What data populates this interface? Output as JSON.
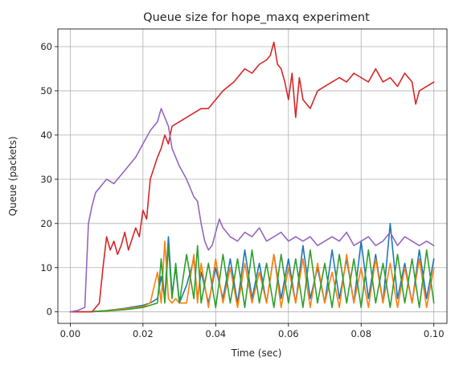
{
  "chart_data": {
    "type": "line",
    "title": "Queue size for hope_maxq experiment",
    "xlabel": "Time (sec)",
    "ylabel": "Queue (packets)",
    "xlim": [
      -0.0034,
      0.1036
    ],
    "ylim": [
      -2.6,
      64.0
    ],
    "x_ticks": [
      0.0,
      0.02,
      0.04,
      0.06,
      0.08,
      0.1
    ],
    "x_tick_labels": [
      "0.00",
      "0.02",
      "0.04",
      "0.06",
      "0.08",
      "0.10"
    ],
    "y_ticks": [
      0,
      10,
      20,
      30,
      40,
      50,
      60
    ],
    "y_tick_labels": [
      "0",
      "10",
      "20",
      "30",
      "40",
      "50",
      "60"
    ],
    "grid": true,
    "legend": "none",
    "series": [
      {
        "color": "#1f77b4",
        "x": [
          0.0,
          0.005,
          0.01,
          0.015,
          0.02,
          0.022,
          0.024,
          0.025,
          0.026,
          0.027,
          0.028,
          0.029,
          0.03,
          0.032,
          0.034,
          0.035,
          0.036,
          0.038,
          0.04,
          0.042,
          0.044,
          0.046,
          0.048,
          0.05,
          0.052,
          0.054,
          0.056,
          0.058,
          0.06,
          0.062,
          0.064,
          0.066,
          0.068,
          0.07,
          0.072,
          0.074,
          0.076,
          0.078,
          0.08,
          0.082,
          0.084,
          0.086,
          0.088,
          0.09,
          0.092,
          0.094,
          0.096,
          0.098,
          0.1
        ],
        "y": [
          0,
          0,
          0.3,
          0.8,
          1.5,
          2,
          3,
          8,
          3,
          17,
          4,
          10,
          2,
          6,
          12,
          3,
          9,
          2,
          10,
          3,
          12,
          2,
          14,
          3,
          11,
          2,
          13,
          3,
          12,
          2,
          15,
          3,
          10,
          2,
          14,
          3,
          12,
          2,
          16,
          3,
          13,
          2,
          20,
          3,
          11,
          2,
          14,
          3,
          12
        ]
      },
      {
        "color": "#ff7f0e",
        "x": [
          0.0,
          0.005,
          0.01,
          0.015,
          0.02,
          0.022,
          0.024,
          0.025,
          0.026,
          0.027,
          0.028,
          0.029,
          0.03,
          0.032,
          0.034,
          0.035,
          0.036,
          0.038,
          0.04,
          0.042,
          0.044,
          0.046,
          0.048,
          0.05,
          0.052,
          0.054,
          0.056,
          0.058,
          0.06,
          0.062,
          0.064,
          0.066,
          0.068,
          0.07,
          0.072,
          0.074,
          0.076,
          0.078,
          0.08,
          0.082,
          0.084,
          0.086,
          0.088,
          0.09,
          0.092,
          0.094,
          0.096,
          0.098,
          0.1
        ],
        "y": [
          0,
          0,
          0.3,
          0.7,
          1.2,
          2,
          9,
          2,
          16,
          3,
          2,
          3,
          2,
          2,
          13,
          2,
          11,
          1,
          12,
          2,
          10,
          1,
          11,
          2,
          9,
          2,
          13,
          1,
          10,
          2,
          12,
          1,
          11,
          2,
          9,
          1,
          13,
          2,
          10,
          1,
          12,
          2,
          11,
          1,
          10,
          2,
          12,
          1,
          10
        ]
      },
      {
        "color": "#2ca02c",
        "x": [
          0.0,
          0.005,
          0.01,
          0.015,
          0.02,
          0.022,
          0.024,
          0.025,
          0.026,
          0.027,
          0.028,
          0.029,
          0.03,
          0.032,
          0.034,
          0.035,
          0.036,
          0.038,
          0.04,
          0.042,
          0.044,
          0.046,
          0.048,
          0.05,
          0.052,
          0.054,
          0.056,
          0.058,
          0.06,
          0.062,
          0.064,
          0.066,
          0.068,
          0.07,
          0.072,
          0.074,
          0.076,
          0.078,
          0.08,
          0.082,
          0.084,
          0.086,
          0.088,
          0.09,
          0.092,
          0.094,
          0.096,
          0.098,
          0.1
        ],
        "y": [
          0,
          0,
          0.2,
          0.5,
          1,
          1.5,
          2,
          12,
          2,
          15,
          3,
          11,
          2,
          13,
          3,
          15,
          2,
          11,
          1,
          13,
          2,
          12,
          1,
          14,
          2,
          11,
          1,
          13,
          2,
          12,
          1,
          14,
          2,
          11,
          1,
          13,
          2,
          12,
          1,
          14,
          2,
          11,
          1,
          13,
          2,
          12,
          1,
          14,
          2
        ]
      },
      {
        "color": "#d62728",
        "x": [
          0.0,
          0.006,
          0.008,
          0.009,
          0.01,
          0.011,
          0.012,
          0.013,
          0.014,
          0.015,
          0.016,
          0.018,
          0.019,
          0.02,
          0.021,
          0.022,
          0.024,
          0.025,
          0.026,
          0.027,
          0.028,
          0.03,
          0.032,
          0.034,
          0.036,
          0.038,
          0.04,
          0.042,
          0.045,
          0.048,
          0.05,
          0.052,
          0.054,
          0.055,
          0.056,
          0.057,
          0.058,
          0.059,
          0.06,
          0.061,
          0.062,
          0.063,
          0.064,
          0.066,
          0.068,
          0.07,
          0.072,
          0.074,
          0.076,
          0.078,
          0.08,
          0.082,
          0.084,
          0.086,
          0.088,
          0.09,
          0.092,
          0.094,
          0.095,
          0.096,
          0.098,
          0.1
        ],
        "y": [
          0,
          0,
          2,
          10,
          17,
          14,
          16,
          13,
          15,
          18,
          14,
          19,
          17,
          23,
          21,
          30,
          35,
          37,
          40,
          38,
          42,
          43,
          44,
          45,
          46,
          46,
          48,
          50,
          52,
          55,
          54,
          56,
          57,
          58,
          61,
          56,
          55,
          52,
          48,
          54,
          44,
          53,
          48,
          46,
          50,
          51,
          52,
          53,
          52,
          54,
          53,
          52,
          55,
          52,
          53,
          51,
          54,
          52,
          47,
          50,
          51,
          52
        ]
      },
      {
        "color": "#9467bd",
        "x": [
          0.0,
          0.002,
          0.004,
          0.005,
          0.006,
          0.007,
          0.008,
          0.009,
          0.01,
          0.012,
          0.014,
          0.016,
          0.018,
          0.02,
          0.022,
          0.024,
          0.025,
          0.026,
          0.027,
          0.028,
          0.03,
          0.032,
          0.034,
          0.035,
          0.036,
          0.037,
          0.038,
          0.039,
          0.04,
          0.041,
          0.042,
          0.044,
          0.046,
          0.048,
          0.05,
          0.052,
          0.054,
          0.056,
          0.058,
          0.06,
          0.062,
          0.064,
          0.066,
          0.068,
          0.07,
          0.072,
          0.074,
          0.076,
          0.078,
          0.08,
          0.082,
          0.084,
          0.086,
          0.088,
          0.09,
          0.092,
          0.094,
          0.096,
          0.098,
          0.1
        ],
        "y": [
          0,
          0.3,
          1,
          20,
          24,
          27,
          28,
          29,
          30,
          29,
          31,
          33,
          35,
          38,
          41,
          43,
          46,
          44,
          42,
          37,
          33,
          30,
          26,
          25,
          20,
          16,
          14,
          15,
          18,
          21,
          19,
          17,
          16,
          18,
          17,
          19,
          16,
          17,
          18,
          16,
          17,
          16,
          17,
          15,
          16,
          17,
          16,
          18,
          15,
          16,
          17,
          15,
          16,
          18,
          15,
          17,
          16,
          15,
          16,
          15
        ]
      }
    ]
  }
}
